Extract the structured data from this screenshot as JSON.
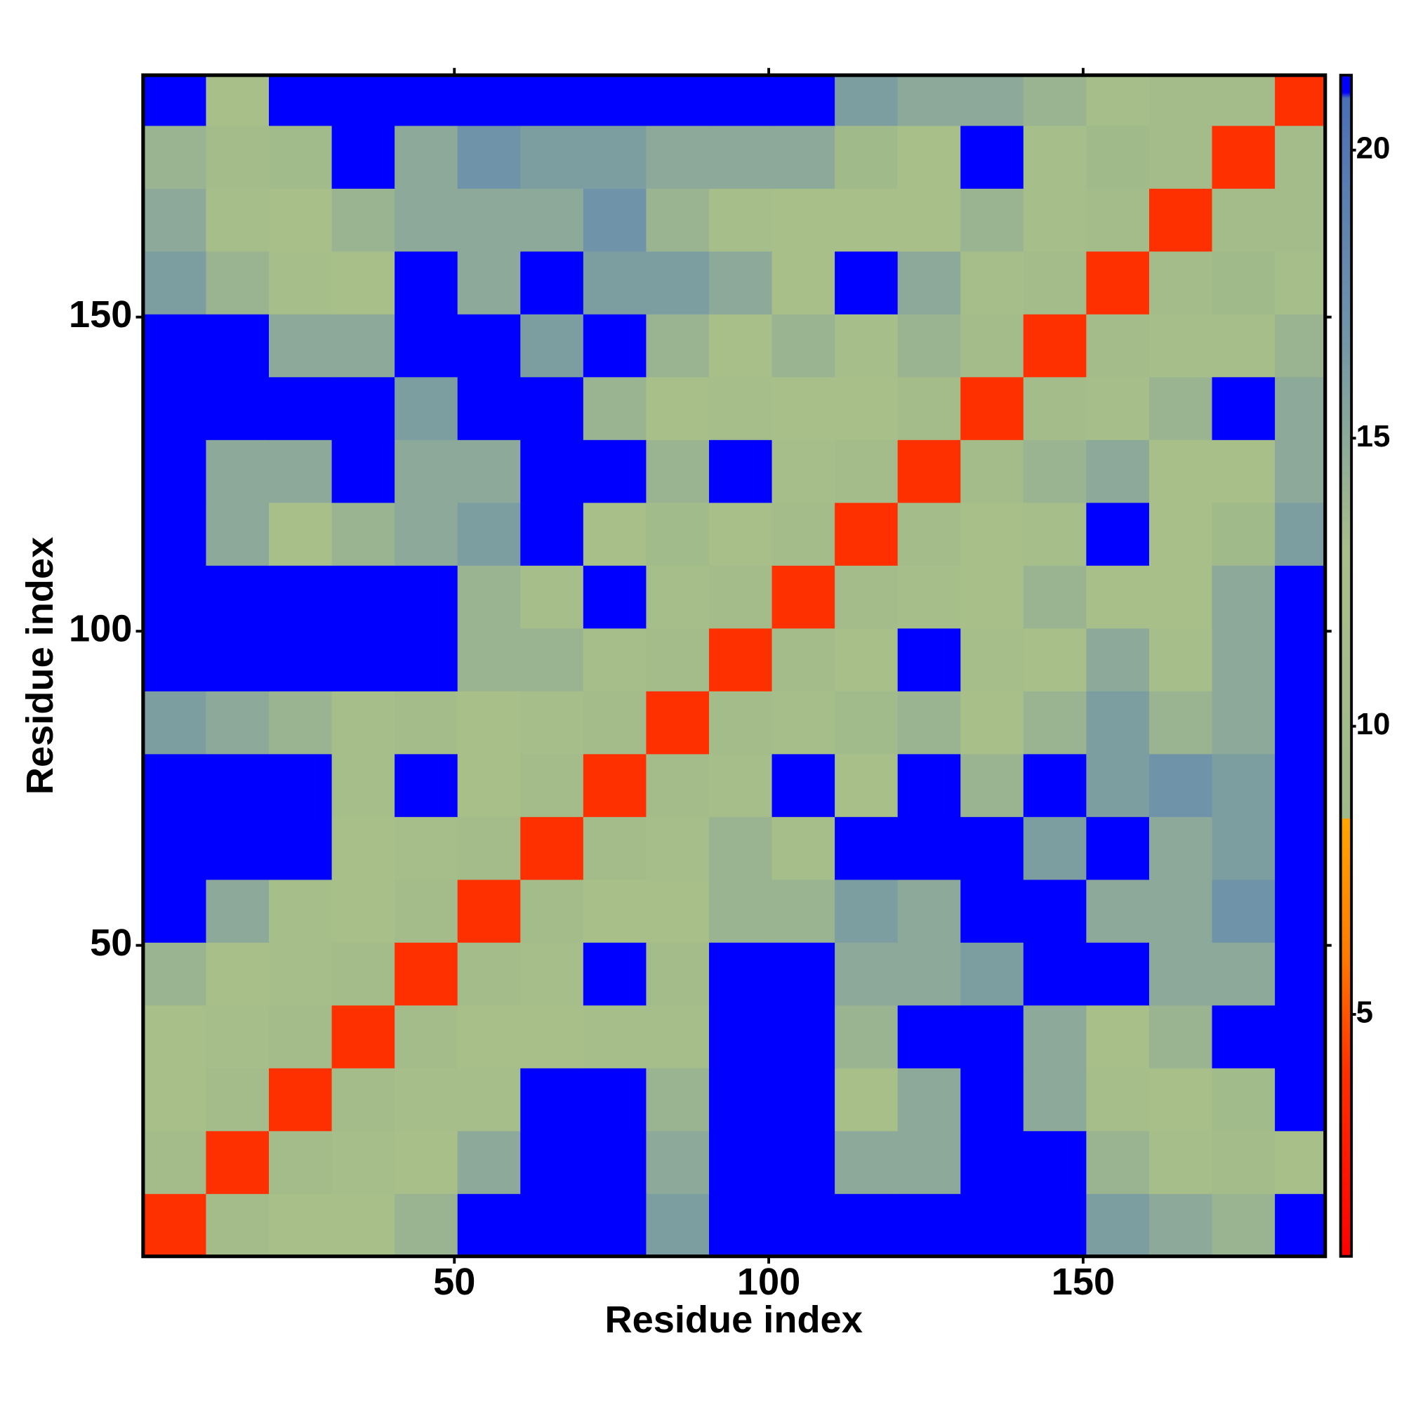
{
  "chart_data": {
    "type": "heatmap",
    "xlabel": "Residue index",
    "ylabel": "Residue index",
    "xbins": [
      0.5,
      10.5,
      20.5,
      30.5,
      40.5,
      50.5,
      60.5,
      70.5,
      80.5,
      90.5,
      100.5,
      110.5,
      120.5,
      130.5,
      140.5,
      150.5,
      160.5,
      170.5,
      180.5,
      188.5
    ],
    "ybins": [
      0.5,
      10.5,
      20.5,
      30.5,
      40.5,
      50.5,
      60.5,
      70.5,
      80.5,
      90.5,
      100.5,
      110.5,
      120.5,
      130.5,
      140.5,
      150.5,
      160.5,
      170.5,
      180.5,
      188.5
    ],
    "xlim": [
      0.5,
      188.5
    ],
    "ylim": [
      0.5,
      188.5
    ],
    "xticks": [
      50,
      100,
      150
    ],
    "yticks": [
      50,
      100,
      150
    ],
    "zlim": [
      0.8,
      21.3
    ],
    "zticks": [
      5,
      10,
      15,
      20
    ],
    "colorscale": [
      [
        0.8,
        "#ff0000"
      ],
      [
        4,
        "#ff3000"
      ],
      [
        6,
        "#ff7a00"
      ],
      [
        8.4,
        "#ffa500"
      ],
      [
        8.4,
        "#9fb98a"
      ],
      [
        13,
        "#a8bf8a"
      ],
      [
        17,
        "#6f93a8"
      ],
      [
        20.9,
        "#4a6fb5"
      ],
      [
        21,
        "#0000ff"
      ],
      [
        21.3,
        "#0000ff"
      ]
    ],
    "z": [
      [
        4,
        11,
        13,
        13,
        14,
        21,
        21,
        21,
        16,
        21,
        21,
        21,
        21,
        21,
        21,
        16,
        15,
        14,
        21
      ],
      [
        11,
        4,
        11,
        12,
        13,
        15,
        21,
        21,
        15,
        21,
        21,
        15,
        15,
        21,
        21,
        14,
        12,
        11,
        13
      ],
      [
        13,
        11,
        4,
        11,
        12,
        12,
        21,
        21,
        14,
        21,
        21,
        13,
        15,
        21,
        15,
        12,
        13,
        10,
        21
      ],
      [
        13,
        12,
        11,
        4,
        11,
        13,
        13,
        12,
        12,
        21,
        21,
        14,
        21,
        21,
        15,
        13,
        14,
        21,
        21
      ],
      [
        14,
        13,
        12,
        11,
        4,
        11,
        12,
        21,
        11,
        21,
        21,
        15,
        15,
        16,
        21,
        21,
        15,
        15,
        21
      ],
      [
        21,
        15,
        12,
        13,
        11,
        4,
        11,
        13,
        13,
        14,
        14,
        16,
        15,
        21,
        21,
        15,
        15,
        17,
        21
      ],
      [
        21,
        21,
        21,
        13,
        12,
        11,
        4,
        11,
        12,
        14,
        12,
        21,
        21,
        21,
        16,
        21,
        15,
        16,
        21
      ],
      [
        21,
        21,
        21,
        12,
        21,
        13,
        11,
        4,
        11,
        12,
        21,
        13,
        21,
        14,
        21,
        16,
        17,
        16,
        21
      ],
      [
        16,
        15,
        14,
        12,
        11,
        13,
        12,
        11,
        4,
        11,
        12,
        10,
        14,
        13,
        14,
        16,
        14,
        15,
        21
      ],
      [
        21,
        21,
        21,
        21,
        21,
        14,
        14,
        12,
        11,
        4,
        11,
        13,
        21,
        12,
        13,
        15,
        12,
        15,
        21
      ],
      [
        21,
        21,
        21,
        21,
        21,
        14,
        12,
        21,
        12,
        11,
        4,
        11,
        12,
        13,
        14,
        13,
        13,
        15,
        21
      ],
      [
        21,
        15,
        13,
        14,
        15,
        16,
        21,
        13,
        10,
        13,
        11,
        4,
        11,
        13,
        12,
        21,
        13,
        9,
        16
      ],
      [
        21,
        15,
        15,
        21,
        15,
        15,
        21,
        21,
        14,
        21,
        12,
        11,
        4,
        11,
        14,
        15,
        13,
        13,
        15
      ],
      [
        21,
        21,
        21,
        21,
        16,
        21,
        21,
        14,
        13,
        12,
        13,
        13,
        11,
        4,
        11,
        12,
        14,
        21,
        15
      ],
      [
        21,
        21,
        15,
        15,
        21,
        21,
        16,
        21,
        14,
        13,
        14,
        12,
        14,
        11,
        4,
        11,
        12,
        12,
        14
      ],
      [
        16,
        14,
        12,
        13,
        21,
        15,
        21,
        16,
        16,
        15,
        13,
        21,
        15,
        12,
        11,
        4,
        11,
        9,
        12
      ],
      [
        15,
        12,
        13,
        14,
        15,
        15,
        15,
        17,
        14,
        12,
        13,
        13,
        13,
        14,
        12,
        11,
        4,
        11,
        11
      ],
      [
        14,
        11,
        10,
        21,
        15,
        17,
        16,
        16,
        15,
        15,
        15,
        9,
        13,
        21,
        12,
        9,
        11,
        4,
        11
      ],
      [
        21,
        13,
        21,
        21,
        21,
        21,
        21,
        21,
        21,
        21,
        21,
        16,
        15,
        15,
        14,
        12,
        11,
        11,
        4
      ]
    ]
  }
}
